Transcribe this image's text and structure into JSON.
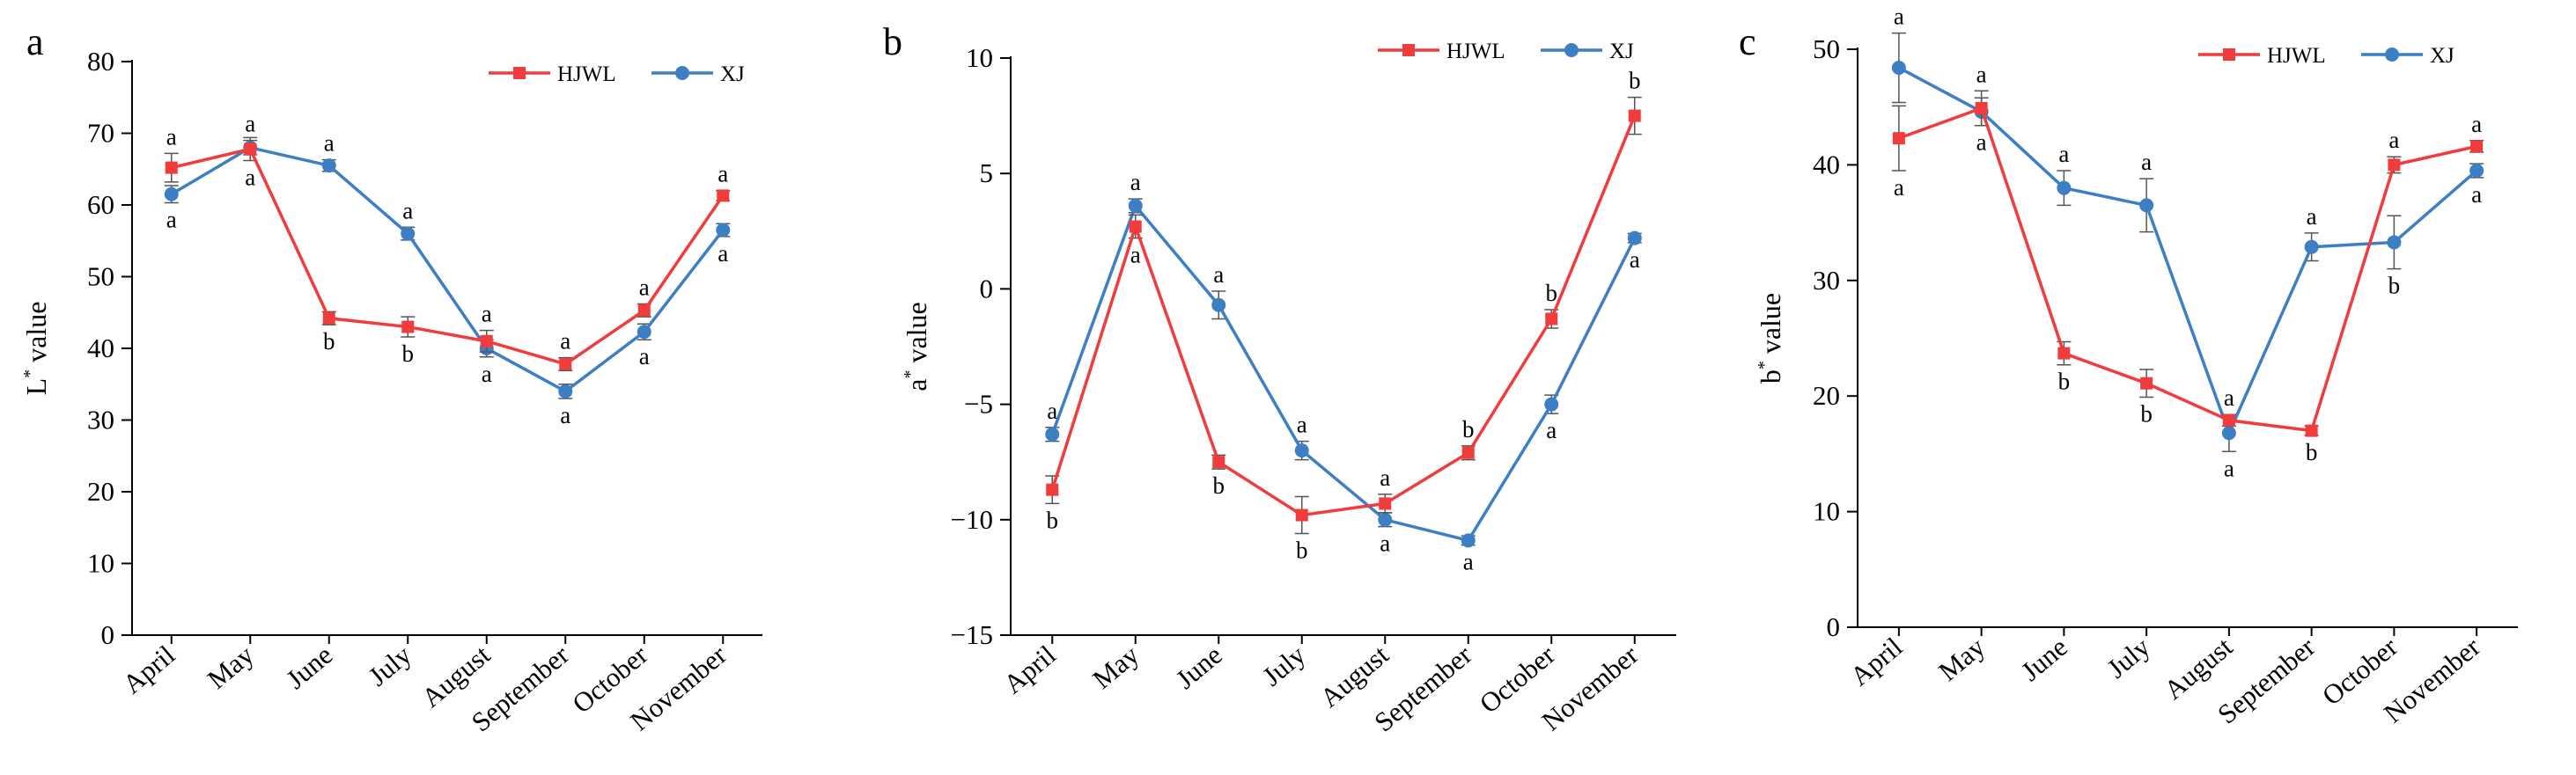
{
  "chart_data": [
    {
      "type": "line",
      "panel_label": "a",
      "title": "",
      "xlabel": "",
      "ylabel": "L* value",
      "ylabel_main": "L",
      "ylabel_sup": "*",
      "ylabel_rest": " value",
      "ylim": [
        0,
        80
      ],
      "yticks": [
        0,
        10,
        20,
        30,
        40,
        50,
        60,
        70,
        80
      ],
      "categories": [
        "April",
        "May",
        "June",
        "July",
        "August",
        "September",
        "October",
        "November"
      ],
      "legend_position": "top-right",
      "series": [
        {
          "name": "HJWL",
          "color": "#f03c3c",
          "marker": "square",
          "values": [
            65.2,
            67.8,
            44.2,
            43.0,
            41.0,
            37.8,
            45.3,
            61.3
          ],
          "errors": [
            2.0,
            1.6,
            0.9,
            1.4,
            1.5,
            0.9,
            0.9,
            0.7
          ],
          "letters": [
            "a",
            "a",
            "b",
            "b",
            "a",
            "a",
            "a",
            "a"
          ]
        },
        {
          "name": "XJ",
          "color": "#3c7fc4",
          "marker": "circle",
          "values": [
            61.5,
            68.0,
            65.5,
            56.0,
            40.0,
            34.0,
            42.3,
            56.5
          ],
          "errors": [
            1.2,
            1.0,
            0.8,
            0.9,
            1.2,
            1.0,
            1.1,
            0.9
          ],
          "letters": [
            "a",
            "a",
            "a",
            "a",
            "a",
            "a",
            "a",
            "a"
          ]
        }
      ]
    },
    {
      "type": "line",
      "panel_label": "b",
      "title": "",
      "xlabel": "",
      "ylabel": "a* value",
      "ylabel_main": "a",
      "ylabel_sup": "*",
      "ylabel_rest": " value",
      "ylim": [
        -15,
        10
      ],
      "yticks": [
        -15,
        -10,
        -5,
        0,
        5,
        10
      ],
      "categories": [
        "April",
        "May",
        "June",
        "July",
        "August",
        "September",
        "October",
        "November"
      ],
      "legend_position": "top-right",
      "series": [
        {
          "name": "HJWL",
          "color": "#f03c3c",
          "marker": "square",
          "values": [
            -8.7,
            2.7,
            -7.5,
            -9.8,
            -9.3,
            -7.1,
            -1.3,
            7.5
          ],
          "errors": [
            0.6,
            0.5,
            0.3,
            0.8,
            0.4,
            0.3,
            0.4,
            0.8
          ],
          "letters": [
            "b",
            "a",
            "b",
            "b",
            "a",
            "b",
            "b",
            "b"
          ]
        },
        {
          "name": "XJ",
          "color": "#3c7fc4",
          "marker": "circle",
          "values": [
            -6.3,
            3.6,
            -0.7,
            -7.0,
            -10.0,
            -10.9,
            -5.0,
            2.2
          ],
          "errors": [
            0.3,
            0.3,
            0.6,
            0.4,
            0.3,
            0.2,
            0.4,
            0.2
          ],
          "letters": [
            "a",
            "a",
            "a",
            "a",
            "a",
            "a",
            "a",
            "a"
          ]
        }
      ]
    },
    {
      "type": "line",
      "panel_label": "c",
      "title": "",
      "xlabel": "",
      "ylabel": "b* value",
      "ylabel_main": "b",
      "ylabel_sup": "*",
      "ylabel_rest": " value",
      "ylim": [
        0,
        50
      ],
      "yticks": [
        0,
        10,
        20,
        30,
        40,
        50
      ],
      "categories": [
        "April",
        "May",
        "June",
        "July",
        "August",
        "September",
        "October",
        "November"
      ],
      "legend_position": "top-right",
      "series": [
        {
          "name": "HJWL",
          "color": "#f03c3c",
          "marker": "square",
          "values": [
            42.3,
            44.9,
            23.7,
            21.1,
            17.9,
            17.0,
            40.0,
            41.6
          ],
          "errors": [
            2.8,
            1.5,
            1.0,
            1.2,
            0.5,
            0.4,
            0.7,
            0.5
          ],
          "letters": [
            "a",
            "a",
            "b",
            "b",
            "a",
            "b",
            "a",
            "a"
          ]
        },
        {
          "name": "XJ",
          "color": "#3c7fc4",
          "marker": "circle",
          "values": [
            48.4,
            44.6,
            38.0,
            36.5,
            16.8,
            32.9,
            33.3,
            39.5
          ],
          "errors": [
            3.0,
            1.2,
            1.5,
            2.3,
            1.6,
            1.2,
            2.3,
            0.6
          ],
          "letters": [
            "a",
            "a",
            "a",
            "a",
            "a",
            "a",
            "b",
            "a"
          ]
        }
      ]
    }
  ]
}
